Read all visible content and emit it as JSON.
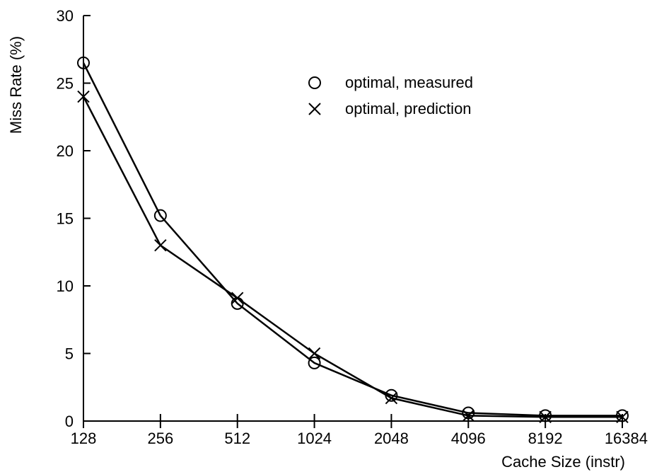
{
  "chart_data": {
    "type": "line",
    "title": "",
    "xlabel": "Cache Size (instr)",
    "ylabel": "Miss Rate (%)",
    "x_scale": "log2",
    "categories": [
      "128",
      "256",
      "512",
      "1024",
      "2048",
      "4096",
      "8192",
      "16384"
    ],
    "ylim": [
      0,
      30
    ],
    "yticks": [
      "0",
      "5",
      "10",
      "15",
      "20",
      "25",
      "30"
    ],
    "grid": false,
    "legend_position": "top-right",
    "series": [
      {
        "name": "optimal, measured",
        "marker": "circle",
        "values": [
          26.5,
          15.2,
          8.7,
          4.3,
          1.9,
          0.6,
          0.4,
          0.4
        ]
      },
      {
        "name": "optimal, prediction",
        "marker": "x",
        "values": [
          24.0,
          13.0,
          9.1,
          5.0,
          1.7,
          0.4,
          0.3,
          0.3
        ]
      }
    ]
  }
}
